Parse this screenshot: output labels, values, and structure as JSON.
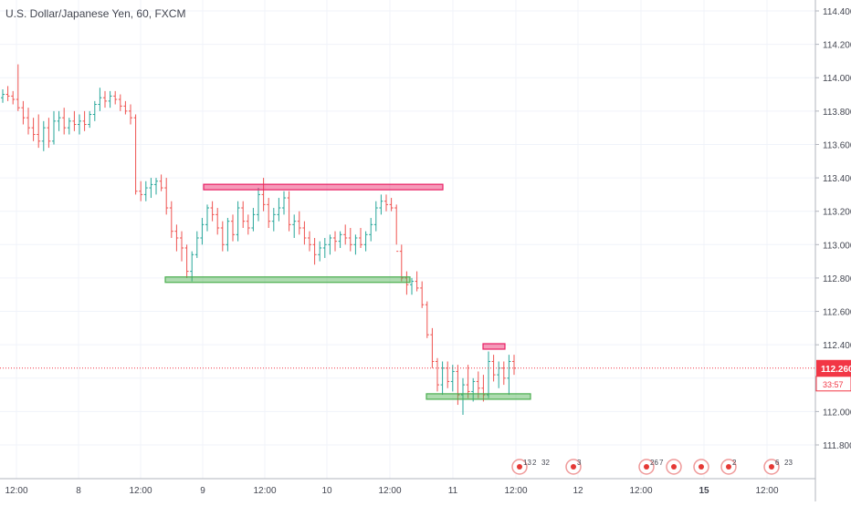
{
  "chart_data": {
    "type": "candlestick",
    "title": "U.S. Dollar/Japanese Yen, 60, FXCM",
    "y_axis": {
      "ticks": [
        "114.400",
        "114.200",
        "114.000",
        "113.800",
        "113.600",
        "113.400",
        "113.200",
        "113.000",
        "112.800",
        "112.600",
        "112.400",
        "112.200",
        "112.000",
        "111.800"
      ],
      "range": [
        111.65,
        114.55
      ],
      "position": "right"
    },
    "x_axis": {
      "ticks": [
        {
          "label": "12:00",
          "bold": false
        },
        {
          "label": "8",
          "bold": false
        },
        {
          "label": "12:00",
          "bold": false
        },
        {
          "label": "9",
          "bold": false
        },
        {
          "label": "12:00",
          "bold": false
        },
        {
          "label": "10",
          "bold": false
        },
        {
          "label": "12:00",
          "bold": false
        },
        {
          "label": "11",
          "bold": false
        },
        {
          "label": "12:00",
          "bold": false
        },
        {
          "label": "12",
          "bold": false
        },
        {
          "label": "12:00",
          "bold": false
        },
        {
          "label": "15",
          "bold": true
        },
        {
          "label": "12:00",
          "bold": false
        }
      ]
    },
    "grid": true,
    "current_price": {
      "value": "112.260",
      "countdown": "33:57",
      "color": "#f23645"
    },
    "colors": {
      "up": "#26a69a",
      "down": "#ef5350",
      "grid": "#f0f3fa",
      "axis_text": "#434651",
      "resistance": "#e91e63",
      "support": "#4caf50"
    },
    "bars": [
      [
        113.88,
        113.93,
        113.85,
        113.9
      ],
      [
        113.9,
        113.95,
        113.86,
        113.89
      ],
      [
        113.89,
        113.92,
        113.84,
        113.87
      ],
      [
        113.87,
        114.08,
        113.8,
        113.82
      ],
      [
        113.82,
        113.86,
        113.72,
        113.76
      ],
      [
        113.76,
        113.82,
        113.66,
        113.7
      ],
      [
        113.7,
        113.76,
        113.62,
        113.66
      ],
      [
        113.66,
        113.78,
        113.58,
        113.62
      ],
      [
        113.62,
        113.74,
        113.56,
        113.7
      ],
      [
        113.7,
        113.76,
        113.58,
        113.62
      ],
      [
        113.62,
        113.8,
        113.6,
        113.74
      ],
      [
        113.74,
        113.8,
        113.68,
        113.76
      ],
      [
        113.76,
        113.82,
        113.66,
        113.7
      ],
      [
        113.7,
        113.76,
        113.66,
        113.74
      ],
      [
        113.74,
        113.8,
        113.68,
        113.72
      ],
      [
        113.72,
        113.78,
        113.66,
        113.74
      ],
      [
        113.74,
        113.8,
        113.68,
        113.72
      ],
      [
        113.72,
        113.8,
        113.7,
        113.78
      ],
      [
        113.78,
        113.86,
        113.74,
        113.84
      ],
      [
        113.84,
        113.94,
        113.8,
        113.88
      ],
      [
        113.88,
        113.92,
        113.82,
        113.86
      ],
      [
        113.86,
        113.92,
        113.82,
        113.89
      ],
      [
        113.89,
        113.92,
        113.84,
        113.87
      ],
      [
        113.87,
        113.9,
        113.8,
        113.83
      ],
      [
        113.83,
        113.86,
        113.78,
        113.8
      ],
      [
        113.8,
        113.84,
        113.72,
        113.76
      ],
      [
        113.76,
        113.78,
        113.3,
        113.32
      ],
      [
        113.32,
        113.38,
        113.26,
        113.3
      ],
      [
        113.3,
        113.38,
        113.26,
        113.34
      ],
      [
        113.34,
        113.4,
        113.28,
        113.36
      ],
      [
        113.36,
        113.4,
        113.3,
        113.38
      ],
      [
        113.38,
        113.42,
        113.32,
        113.34
      ],
      [
        113.34,
        113.4,
        113.18,
        113.22
      ],
      [
        113.22,
        113.26,
        113.04,
        113.08
      ],
      [
        113.08,
        113.12,
        112.96,
        113.04
      ],
      [
        113.04,
        113.08,
        112.9,
        112.98
      ],
      [
        112.98,
        113.0,
        112.8,
        112.84
      ],
      [
        112.84,
        112.96,
        112.78,
        112.94
      ],
      [
        112.94,
        113.08,
        112.92,
        113.04
      ],
      [
        113.04,
        113.16,
        113.0,
        113.12
      ],
      [
        113.12,
        113.24,
        113.08,
        113.22
      ],
      [
        113.22,
        113.26,
        113.14,
        113.18
      ],
      [
        113.18,
        113.22,
        113.06,
        113.1
      ],
      [
        113.1,
        113.14,
        112.96,
        113.0
      ],
      [
        113.0,
        113.16,
        112.96,
        113.14
      ],
      [
        113.14,
        113.18,
        113.02,
        113.06
      ],
      [
        113.06,
        113.26,
        113.02,
        113.22
      ],
      [
        113.22,
        113.26,
        113.1,
        113.14
      ],
      [
        113.14,
        113.18,
        113.06,
        113.1
      ],
      [
        113.1,
        113.22,
        113.08,
        113.18
      ],
      [
        113.18,
        113.34,
        113.14,
        113.3
      ],
      [
        113.3,
        113.4,
        113.2,
        113.24
      ],
      [
        113.24,
        113.28,
        113.1,
        113.14
      ],
      [
        113.14,
        113.22,
        113.08,
        113.18
      ],
      [
        113.18,
        113.28,
        113.14,
        113.22
      ],
      [
        113.22,
        113.32,
        113.18,
        113.28
      ],
      [
        113.28,
        113.32,
        113.08,
        113.12
      ],
      [
        113.12,
        113.18,
        113.04,
        113.14
      ],
      [
        113.14,
        113.2,
        113.06,
        113.1
      ],
      [
        113.1,
        113.14,
        113.0,
        113.04
      ],
      [
        113.04,
        113.08,
        112.96,
        113.0
      ],
      [
        113.0,
        113.04,
        112.88,
        112.94
      ],
      [
        112.94,
        113.02,
        112.9,
        112.98
      ],
      [
        112.98,
        113.04,
        112.92,
        113.0
      ],
      [
        113.0,
        113.06,
        112.94,
        113.04
      ],
      [
        113.04,
        113.08,
        112.96,
        113.02
      ],
      [
        113.02,
        113.08,
        112.98,
        113.06
      ],
      [
        113.06,
        113.12,
        113.0,
        113.04
      ],
      [
        113.04,
        113.1,
        112.96,
        113.0
      ],
      [
        113.0,
        113.06,
        112.94,
        113.04
      ],
      [
        113.04,
        113.1,
        112.98,
        113.0
      ],
      [
        113.0,
        113.08,
        112.96,
        113.06
      ],
      [
        113.06,
        113.16,
        113.02,
        113.12
      ],
      [
        113.12,
        113.26,
        113.08,
        113.22
      ],
      [
        113.22,
        113.3,
        113.18,
        113.26
      ],
      [
        113.26,
        113.3,
        113.2,
        113.24
      ],
      [
        113.24,
        113.28,
        113.2,
        113.22
      ],
      [
        113.22,
        113.24,
        113.0,
        112.96
      ],
      [
        112.96,
        113.0,
        112.78,
        112.8
      ],
      [
        112.8,
        112.84,
        112.7,
        112.76
      ],
      [
        112.76,
        112.8,
        112.7,
        112.78
      ],
      [
        112.78,
        112.84,
        112.72,
        112.74
      ],
      [
        112.74,
        112.78,
        112.62,
        112.64
      ],
      [
        112.64,
        112.66,
        112.44,
        112.46
      ],
      [
        112.46,
        112.5,
        112.26,
        112.3
      ],
      [
        112.3,
        112.32,
        112.12,
        112.16
      ],
      [
        112.16,
        112.3,
        112.1,
        112.26
      ],
      [
        112.26,
        112.3,
        112.14,
        112.18
      ],
      [
        112.18,
        112.28,
        112.12,
        112.24
      ],
      [
        112.24,
        112.28,
        112.04,
        112.1
      ],
      [
        112.1,
        112.2,
        111.98,
        112.16
      ],
      [
        112.16,
        112.28,
        112.08,
        112.12
      ],
      [
        112.12,
        112.2,
        112.06,
        112.18
      ],
      [
        112.18,
        112.24,
        112.08,
        112.14
      ],
      [
        112.14,
        112.22,
        112.06,
        112.1
      ],
      [
        112.1,
        112.36,
        112.08,
        112.3
      ],
      [
        112.3,
        112.34,
        112.18,
        112.22
      ],
      [
        112.22,
        112.3,
        112.14,
        112.26
      ],
      [
        112.26,
        112.3,
        112.16,
        112.2
      ],
      [
        112.2,
        112.34,
        112.1,
        112.3
      ],
      [
        112.3,
        112.34,
        112.22,
        112.26
      ]
    ],
    "annotations": [
      {
        "kind": "resistance",
        "from": 112,
        "to": 240,
        "value": 113.345,
        "color": "#e91e63"
      },
      {
        "kind": "support",
        "from": 91,
        "to": 222,
        "value": 112.79,
        "color": "#4caf50"
      },
      {
        "kind": "resistance",
        "from": 265,
        "to": 274,
        "value": 112.39,
        "color": "#e91e63"
      },
      {
        "kind": "support",
        "from": 234,
        "to": 288,
        "value": 112.09,
        "color": "#4caf50"
      }
    ],
    "events": [
      {
        "label": "13",
        "label2": "2",
        "label3": "32",
        "x": 569
      },
      {
        "label": "3",
        "x": 628
      },
      {
        "label": "26",
        "label2": "7",
        "x": 708
      },
      {
        "label": "",
        "x": 738
      },
      {
        "label": "",
        "x": 768
      },
      {
        "label": "2",
        "x": 798
      },
      {
        "label": "6",
        "label2": "23",
        "x": 845
      }
    ]
  }
}
